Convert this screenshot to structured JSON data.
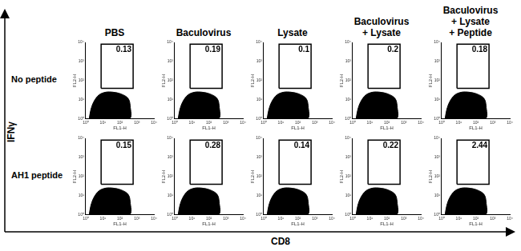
{
  "x_label": "CD8",
  "y_label": "IFNγ",
  "columns": [
    [
      "PBS"
    ],
    [
      "Baculovirus"
    ],
    [
      "Lysate"
    ],
    [
      "Baculovirus",
      "+ Lysate"
    ],
    [
      "Baculovirus",
      "+ Lysate",
      "+ Peptide"
    ]
  ],
  "rows": [
    "No peptide",
    "AH1 peptide"
  ],
  "chart_data": [
    {
      "type": "scatter",
      "log": true,
      "xlabel": "FL1-H",
      "ylabel": "FL2-H",
      "xlim": [
        1,
        10000
      ],
      "ylim": [
        1,
        10000
      ],
      "xticks": [
        {
          "value": 1,
          "label": "10⁰"
        },
        {
          "value": 10,
          "label": "10¹"
        },
        {
          "value": 100,
          "label": "10²"
        },
        {
          "value": 1000,
          "label": "10³"
        },
        {
          "value": 10000,
          "label": "10⁴"
        }
      ],
      "yticks": [
        {
          "value": 1,
          "label": "10⁰"
        },
        {
          "value": 10,
          "label": "10¹"
        },
        {
          "value": 100,
          "label": "10²"
        },
        {
          "value": 1000,
          "label": "10³"
        },
        {
          "value": 10000,
          "label": "10⁴"
        }
      ],
      "population": {
        "x": [
          1.6,
          2,
          3,
          6,
          15,
          40,
          120,
          300,
          400,
          350,
          1.6
        ],
        "y": [
          1,
          3,
          8,
          18,
          25,
          25,
          20,
          12,
          5,
          1,
          1
        ]
      },
      "gate": {
        "x": [
          8,
          600
        ],
        "y": [
          40,
          8000
        ]
      },
      "gate_percent": 0.13,
      "color": "#000000"
    },
    {
      "type": "scatter",
      "log": true,
      "xlabel": "FL1-H",
      "ylabel": "FL2-H",
      "xlim": [
        1,
        10000
      ],
      "ylim": [
        1,
        10000
      ],
      "xticks": [
        {
          "value": 1,
          "label": "10⁰"
        },
        {
          "value": 10,
          "label": "10¹"
        },
        {
          "value": 100,
          "label": "10²"
        },
        {
          "value": 1000,
          "label": "10³"
        },
        {
          "value": 10000,
          "label": "10⁴"
        }
      ],
      "yticks": [
        {
          "value": 1,
          "label": "10⁰"
        },
        {
          "value": 10,
          "label": "10¹"
        },
        {
          "value": 100,
          "label": "10²"
        },
        {
          "value": 1000,
          "label": "10³"
        },
        {
          "value": 10000,
          "label": "10⁴"
        }
      ],
      "population": {
        "x": [
          1.6,
          2,
          3,
          6,
          15,
          40,
          120,
          300,
          400,
          350,
          1.6
        ],
        "y": [
          1,
          3,
          8,
          18,
          25,
          25,
          20,
          12,
          5,
          1,
          1
        ]
      },
      "gate": {
        "x": [
          8,
          600
        ],
        "y": [
          40,
          8000
        ]
      },
      "gate_percent": 0.19,
      "color": "#000000"
    },
    {
      "type": "scatter",
      "log": true,
      "xlabel": "FL1-H",
      "ylabel": "FL2-H",
      "xlim": [
        1,
        10000
      ],
      "ylim": [
        1,
        10000
      ],
      "xticks": [
        {
          "value": 1,
          "label": "10⁰"
        },
        {
          "value": 10,
          "label": "10¹"
        },
        {
          "value": 100,
          "label": "10²"
        },
        {
          "value": 1000,
          "label": "10³"
        },
        {
          "value": 10000,
          "label": "10⁴"
        }
      ],
      "yticks": [
        {
          "value": 1,
          "label": "10⁰"
        },
        {
          "value": 10,
          "label": "10¹"
        },
        {
          "value": 100,
          "label": "10²"
        },
        {
          "value": 1000,
          "label": "10³"
        },
        {
          "value": 10000,
          "label": "10⁴"
        }
      ],
      "population": {
        "x": [
          1.6,
          2,
          3,
          6,
          15,
          40,
          120,
          300,
          400,
          350,
          1.6
        ],
        "y": [
          1,
          3,
          8,
          18,
          25,
          25,
          20,
          12,
          5,
          1,
          1
        ]
      },
      "gate": {
        "x": [
          8,
          600
        ],
        "y": [
          40,
          8000
        ]
      },
      "gate_percent": 0.1,
      "color": "#000000"
    },
    {
      "type": "scatter",
      "log": true,
      "xlabel": "FL1-H",
      "ylabel": "FL2-H",
      "xlim": [
        1,
        10000
      ],
      "ylim": [
        1,
        10000
      ],
      "xticks": [
        {
          "value": 1,
          "label": "10⁰"
        },
        {
          "value": 10,
          "label": "10¹"
        },
        {
          "value": 100,
          "label": "10²"
        },
        {
          "value": 1000,
          "label": "10³"
        },
        {
          "value": 10000,
          "label": "10⁴"
        }
      ],
      "yticks": [
        {
          "value": 1,
          "label": "10⁰"
        },
        {
          "value": 10,
          "label": "10¹"
        },
        {
          "value": 100,
          "label": "10²"
        },
        {
          "value": 1000,
          "label": "10³"
        },
        {
          "value": 10000,
          "label": "10⁴"
        }
      ],
      "population": {
        "x": [
          1.6,
          2,
          3,
          6,
          15,
          40,
          120,
          300,
          400,
          350,
          1.6
        ],
        "y": [
          1,
          3,
          8,
          18,
          25,
          25,
          20,
          12,
          5,
          1,
          1
        ]
      },
      "gate": {
        "x": [
          8,
          600
        ],
        "y": [
          40,
          8000
        ]
      },
      "gate_percent": 0.2,
      "color": "#000000"
    },
    {
      "type": "scatter",
      "log": true,
      "xlabel": "FL1-H",
      "ylabel": "FL2-H",
      "xlim": [
        1,
        10000
      ],
      "ylim": [
        1,
        10000
      ],
      "xticks": [
        {
          "value": 1,
          "label": "10⁰"
        },
        {
          "value": 10,
          "label": "10¹"
        },
        {
          "value": 100,
          "label": "10²"
        },
        {
          "value": 1000,
          "label": "10³"
        },
        {
          "value": 10000,
          "label": "10⁴"
        }
      ],
      "yticks": [
        {
          "value": 1,
          "label": "10⁰"
        },
        {
          "value": 10,
          "label": "10¹"
        },
        {
          "value": 100,
          "label": "10²"
        },
        {
          "value": 1000,
          "label": "10³"
        },
        {
          "value": 10000,
          "label": "10⁴"
        }
      ],
      "population": {
        "x": [
          1.6,
          2,
          3,
          6,
          15,
          40,
          120,
          300,
          400,
          350,
          1.6
        ],
        "y": [
          1,
          3,
          8,
          18,
          25,
          25,
          20,
          12,
          5,
          1,
          1
        ]
      },
      "gate": {
        "x": [
          8,
          600
        ],
        "y": [
          40,
          8000
        ]
      },
      "gate_percent": 0.18,
      "color": "#000000"
    },
    {
      "type": "scatter",
      "log": true,
      "xlabel": "FL1-H",
      "ylabel": "FL2-H",
      "xlim": [
        1,
        10000
      ],
      "ylim": [
        1,
        10000
      ],
      "xticks": [
        {
          "value": 1,
          "label": "10⁰"
        },
        {
          "value": 10,
          "label": "10¹"
        },
        {
          "value": 100,
          "label": "10²"
        },
        {
          "value": 1000,
          "label": "10³"
        },
        {
          "value": 10000,
          "label": "10⁴"
        }
      ],
      "yticks": [
        {
          "value": 1,
          "label": "10⁰"
        },
        {
          "value": 10,
          "label": "10¹"
        },
        {
          "value": 100,
          "label": "10²"
        },
        {
          "value": 1000,
          "label": "10³"
        },
        {
          "value": 10000,
          "label": "10⁴"
        }
      ],
      "population": {
        "x": [
          1.6,
          2,
          3,
          6,
          15,
          40,
          120,
          300,
          400,
          350,
          1.6
        ],
        "y": [
          1,
          3,
          8,
          18,
          25,
          25,
          20,
          12,
          5,
          1,
          1
        ]
      },
      "gate": {
        "x": [
          8,
          600
        ],
        "y": [
          40,
          8000
        ]
      },
      "gate_percent": 0.15,
      "color": "#000000"
    },
    {
      "type": "scatter",
      "log": true,
      "xlabel": "FL1-H",
      "ylabel": "FL2-H",
      "xlim": [
        1,
        10000
      ],
      "ylim": [
        1,
        10000
      ],
      "xticks": [
        {
          "value": 1,
          "label": "10⁰"
        },
        {
          "value": 10,
          "label": "10¹"
        },
        {
          "value": 100,
          "label": "10²"
        },
        {
          "value": 1000,
          "label": "10³"
        },
        {
          "value": 10000,
          "label": "10⁴"
        }
      ],
      "yticks": [
        {
          "value": 1,
          "label": "10⁰"
        },
        {
          "value": 10,
          "label": "10¹"
        },
        {
          "value": 100,
          "label": "10²"
        },
        {
          "value": 1000,
          "label": "10³"
        },
        {
          "value": 10000,
          "label": "10⁴"
        }
      ],
      "population": {
        "x": [
          1.6,
          2,
          3,
          6,
          15,
          40,
          120,
          300,
          400,
          350,
          1.6
        ],
        "y": [
          1,
          3,
          8,
          18,
          25,
          25,
          20,
          12,
          5,
          1,
          1
        ]
      },
      "gate": {
        "x": [
          8,
          600
        ],
        "y": [
          40,
          8000
        ]
      },
      "gate_percent": 0.28,
      "color": "#000000"
    },
    {
      "type": "scatter",
      "log": true,
      "xlabel": "FL1-H",
      "ylabel": "FL2-H",
      "xlim": [
        1,
        10000
      ],
      "ylim": [
        1,
        10000
      ],
      "xticks": [
        {
          "value": 1,
          "label": "10⁰"
        },
        {
          "value": 10,
          "label": "10¹"
        },
        {
          "value": 100,
          "label": "10²"
        },
        {
          "value": 1000,
          "label": "10³"
        },
        {
          "value": 10000,
          "label": "10⁴"
        }
      ],
      "yticks": [
        {
          "value": 1,
          "label": "10⁰"
        },
        {
          "value": 10,
          "label": "10¹"
        },
        {
          "value": 100,
          "label": "10²"
        },
        {
          "value": 1000,
          "label": "10³"
        },
        {
          "value": 10000,
          "label": "10⁴"
        }
      ],
      "population": {
        "x": [
          1.6,
          2,
          3,
          6,
          15,
          40,
          120,
          300,
          400,
          350,
          1.6
        ],
        "y": [
          1,
          3,
          8,
          18,
          25,
          25,
          20,
          12,
          5,
          1,
          1
        ]
      },
      "gate": {
        "x": [
          8,
          600
        ],
        "y": [
          40,
          8000
        ]
      },
      "gate_percent": 0.14,
      "color": "#000000"
    },
    {
      "type": "scatter",
      "log": true,
      "xlabel": "FL1-H",
      "ylabel": "FL2-H",
      "xlim": [
        1,
        10000
      ],
      "ylim": [
        1,
        10000
      ],
      "xticks": [
        {
          "value": 1,
          "label": "10⁰"
        },
        {
          "value": 10,
          "label": "10¹"
        },
        {
          "value": 100,
          "label": "10²"
        },
        {
          "value": 1000,
          "label": "10³"
        },
        {
          "value": 10000,
          "label": "10⁴"
        }
      ],
      "yticks": [
        {
          "value": 1,
          "label": "10⁰"
        },
        {
          "value": 10,
          "label": "10¹"
        },
        {
          "value": 100,
          "label": "10²"
        },
        {
          "value": 1000,
          "label": "10³"
        },
        {
          "value": 10000,
          "label": "10⁴"
        }
      ],
      "population": {
        "x": [
          1.6,
          2,
          3,
          6,
          15,
          40,
          120,
          300,
          400,
          350,
          1.6
        ],
        "y": [
          1,
          3,
          8,
          18,
          25,
          25,
          20,
          12,
          5,
          1,
          1
        ]
      },
      "gate": {
        "x": [
          8,
          600
        ],
        "y": [
          40,
          8000
        ]
      },
      "gate_percent": 0.22,
      "color": "#000000"
    },
    {
      "type": "scatter",
      "log": true,
      "xlabel": "FL1-H",
      "ylabel": "FL2-H",
      "xlim": [
        1,
        10000
      ],
      "ylim": [
        1,
        10000
      ],
      "xticks": [
        {
          "value": 1,
          "label": "10⁰"
        },
        {
          "value": 10,
          "label": "10¹"
        },
        {
          "value": 100,
          "label": "10²"
        },
        {
          "value": 1000,
          "label": "10³"
        },
        {
          "value": 10000,
          "label": "10⁴"
        }
      ],
      "yticks": [
        {
          "value": 1,
          "label": "10⁰"
        },
        {
          "value": 10,
          "label": "10¹"
        },
        {
          "value": 100,
          "label": "10²"
        },
        {
          "value": 1000,
          "label": "10³"
        },
        {
          "value": 10000,
          "label": "10⁴"
        }
      ],
      "population": {
        "x": [
          1.6,
          2,
          3,
          6,
          15,
          40,
          120,
          300,
          400,
          350,
          1.6
        ],
        "y": [
          1,
          3,
          8,
          18,
          25,
          25,
          20,
          12,
          5,
          1,
          1
        ]
      },
      "gate": {
        "x": [
          8,
          600
        ],
        "y": [
          40,
          8000
        ]
      },
      "gate_percent": 2.44,
      "color": "#000000"
    }
  ]
}
